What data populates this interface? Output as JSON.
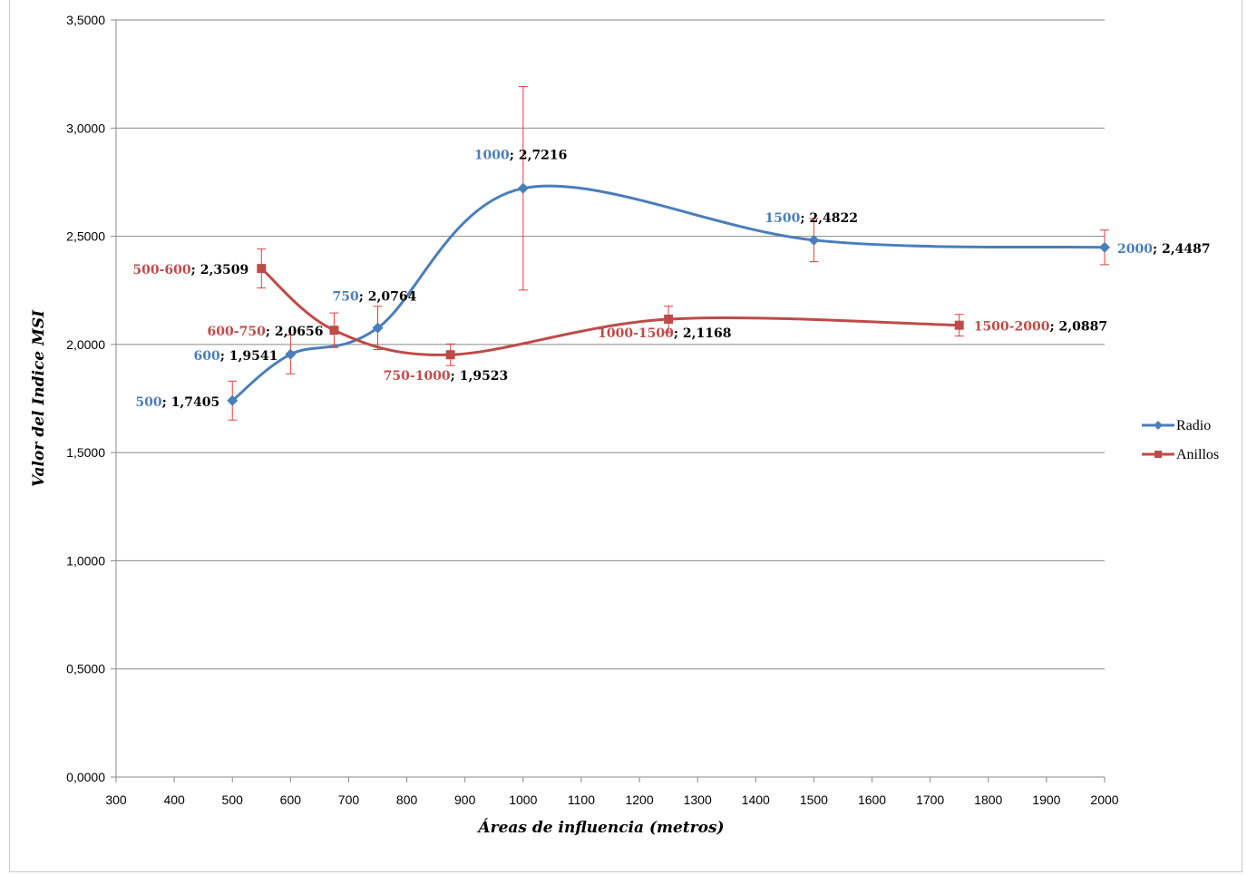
{
  "chart_data": {
    "type": "line",
    "title": "",
    "xlabel": "Áreas de  influencia (metros)",
    "ylabel": "Valor del Indice MSI",
    "xlim": [
      300,
      2000
    ],
    "ylim": [
      0,
      3.5
    ],
    "x_ticks": [
      "300",
      "400",
      "500",
      "600",
      "700",
      "800",
      "900",
      "1000",
      "1100",
      "1200",
      "1300",
      "1400",
      "1500",
      "1600",
      "1700",
      "1800",
      "1900",
      "2000"
    ],
    "y_ticks": [
      "0,0000",
      "0,5000",
      "1,0000",
      "1,5000",
      "2,0000",
      "2,5000",
      "3,0000",
      "3,5000"
    ],
    "grid": "horizontal",
    "legend_position": "right",
    "series": [
      {
        "name": "Radio",
        "color": "#4a7ebb",
        "marker": "diamond",
        "x": [
          500,
          600,
          750,
          1000,
          1500,
          2000
        ],
        "y": [
          1.7405,
          1.9541,
          2.0764,
          2.7216,
          2.4822,
          2.4487
        ],
        "err": [
          0.09,
          0.09,
          0.1,
          0.47,
          0.1,
          0.08
        ],
        "labels": [
          {
            "cat": "500",
            "val": "1,7405"
          },
          {
            "cat": "600",
            "val": "1,9541"
          },
          {
            "cat": "750",
            "val": "2,0764"
          },
          {
            "cat": "1000",
            "val": "2,7216"
          },
          {
            "cat": "1500",
            "val": "2,4822"
          },
          {
            "cat": "2000",
            "val": "2,4487"
          }
        ]
      },
      {
        "name": "Anillos",
        "color": "#be4b48",
        "marker": "square",
        "x": [
          550,
          675,
          875,
          1250,
          1750
        ],
        "y": [
          2.3509,
          2.0656,
          1.9523,
          2.1168,
          2.0887
        ],
        "err": [
          0.09,
          0.08,
          0.05,
          0.06,
          0.05
        ],
        "labels": [
          {
            "cat": "500-600",
            "val": "2,3509"
          },
          {
            "cat": "600-750",
            "val": "2,0656"
          },
          {
            "cat": "750-1000",
            "val": "1,9523"
          },
          {
            "cat": "1000-1500",
            "val": "2,1168"
          },
          {
            "cat": "1500-2000",
            "val": "2,0887"
          }
        ]
      }
    ]
  },
  "colors": {
    "radio": "#4a7ebb",
    "anillos": "#be4b48",
    "error_bar": "#e0403a",
    "grid": "#888888"
  }
}
